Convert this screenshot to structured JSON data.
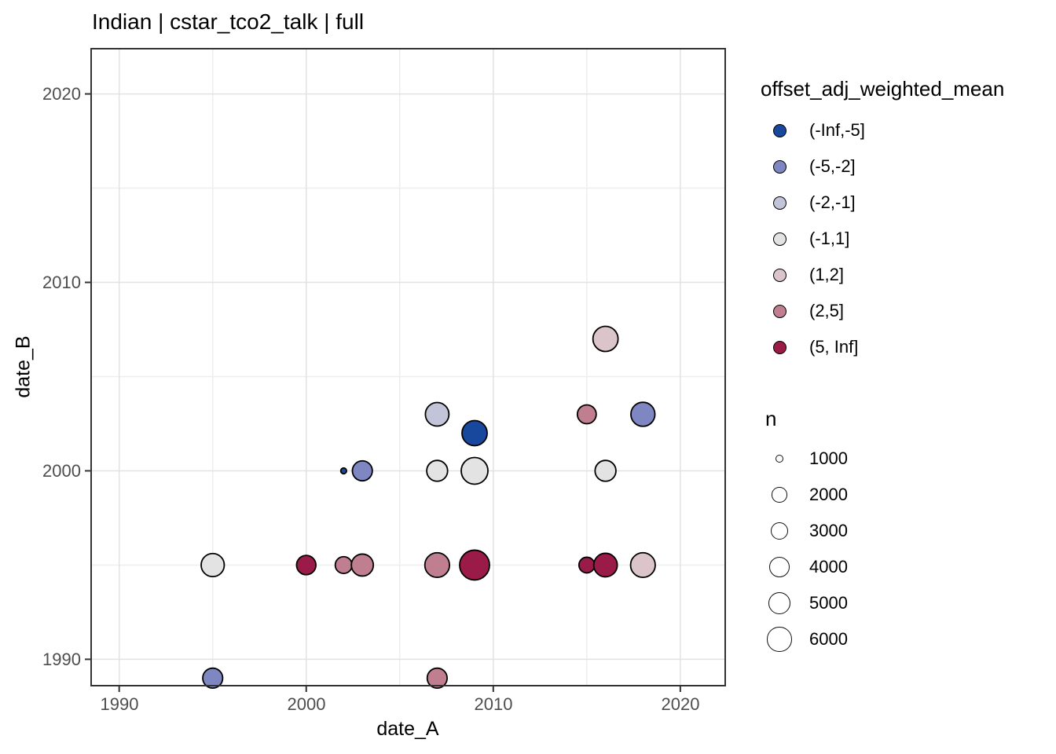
{
  "title": "Indian | cstar_tco2_talk | full",
  "x_axis": {
    "label": "date_A",
    "ticks": [
      "1990",
      "2000",
      "2010",
      "2020"
    ]
  },
  "y_axis": {
    "label": "date_B",
    "ticks": [
      "2020",
      "2010",
      "2000",
      "1990"
    ]
  },
  "legend_color": {
    "title": "offset_adj_weighted_mean",
    "items": [
      {
        "label": "(-Inf,-5]",
        "color": "#17489d"
      },
      {
        "label": "(-5,-2]",
        "color": "#7e87c1"
      },
      {
        "label": "(-2,-1]",
        "color": "#c2c5d9"
      },
      {
        "label": "(-1,1]",
        "color": "#e3e3e3"
      },
      {
        "label": "(1,2]",
        "color": "#dcc4cb"
      },
      {
        "label": "(2,5]",
        "color": "#c07f90"
      },
      {
        "label": "(5, Inf]",
        "color": "#9a1b47"
      }
    ]
  },
  "legend_size": {
    "title": "n",
    "items": [
      {
        "label": "1000",
        "r": 5.3
      },
      {
        "label": "2000",
        "r": 9.7
      },
      {
        "label": "3000",
        "r": 11.3
      },
      {
        "label": "4000",
        "r": 13.0
      },
      {
        "label": "5000",
        "r": 14.3
      },
      {
        "label": "6000",
        "r": 15.7
      }
    ]
  },
  "colors": {
    "panel_border": "#333333",
    "gridline_major": "#e2e2e2",
    "gridline_minor": "#eeeeee",
    "tick_mark": "#333333",
    "tick_label": "#4d4d4d",
    "point_stroke": "#000000"
  },
  "chart_data": {
    "type": "scatter",
    "title": "Indian | cstar_tco2_talk | full",
    "xlabel": "date_A",
    "ylabel": "date_B",
    "xlim": [
      1988.5,
      2022.4
    ],
    "ylim": [
      1988.6,
      2022.4
    ],
    "x_major_ticks": [
      1990,
      2000,
      2010,
      2020
    ],
    "y_major_ticks": [
      1990,
      2000,
      2010,
      2020
    ],
    "x_minor_ticks": [
      1995,
      2005,
      2015
    ],
    "y_minor_ticks": [
      1995,
      2005,
      2015
    ],
    "grid": true,
    "legend_position": "right",
    "color_variable": "offset_adj_weighted_mean",
    "size_variable": "n",
    "points": [
      {
        "date_A": 1995,
        "date_B": 1989,
        "bin": "(-5,-2]",
        "n": 3800,
        "r": 12.7
      },
      {
        "date_A": 2007,
        "date_B": 1989,
        "bin": "(2,5]",
        "n": 3800,
        "r": 12.7
      },
      {
        "date_A": 1995,
        "date_B": 1995,
        "bin": "(-1,1]",
        "n": 5200,
        "r": 14.7
      },
      {
        "date_A": 2000,
        "date_B": 1995,
        "bin": "(5, Inf]",
        "n": 3600,
        "r": 12.3
      },
      {
        "date_A": 2002,
        "date_B": 1995,
        "bin": "(2,5]",
        "n": 2600,
        "r": 10.7
      },
      {
        "date_A": 2003,
        "date_B": 1995,
        "bin": "(2,5]",
        "n": 4700,
        "r": 14.0
      },
      {
        "date_A": 2007,
        "date_B": 1995,
        "bin": "(2,5]",
        "n": 6000,
        "r": 15.7
      },
      {
        "date_A": 2009,
        "date_B": 1995,
        "bin": "(5, Inf]",
        "n": 8000,
        "r": 19.0
      },
      {
        "date_A": 2015,
        "date_B": 1995,
        "bin": "(5, Inf]",
        "n": 2300,
        "r": 10.0
      },
      {
        "date_A": 2016,
        "date_B": 1995,
        "bin": "(5, Inf]",
        "n": 5500,
        "r": 15.0
      },
      {
        "date_A": 2018,
        "date_B": 1995,
        "bin": "(1,2]",
        "n": 6000,
        "r": 15.7
      },
      {
        "date_A": 2002,
        "date_B": 2000,
        "bin": "(-Inf,-5]",
        "n": 400,
        "r": 3.7
      },
      {
        "date_A": 2003,
        "date_B": 2000,
        "bin": "(-5,-2]",
        "n": 3800,
        "r": 12.7
      },
      {
        "date_A": 2007,
        "date_B": 2000,
        "bin": "(-1,1]",
        "n": 4200,
        "r": 13.3
      },
      {
        "date_A": 2009,
        "date_B": 2000,
        "bin": "(-1,1]",
        "n": 7000,
        "r": 17.0
      },
      {
        "date_A": 2016,
        "date_B": 2000,
        "bin": "(-1,1]",
        "n": 4200,
        "r": 13.3
      },
      {
        "date_A": 2009,
        "date_B": 2002,
        "bin": "(-Inf,-5]",
        "n": 6200,
        "r": 16.0
      },
      {
        "date_A": 2007,
        "date_B": 2003,
        "bin": "(-2,-1]",
        "n": 5500,
        "r": 15.0
      },
      {
        "date_A": 2015,
        "date_B": 2003,
        "bin": "(2,5]",
        "n": 3400,
        "r": 12.0
      },
      {
        "date_A": 2018,
        "date_B": 2003,
        "bin": "(-5,-2]",
        "n": 5700,
        "r": 15.3
      },
      {
        "date_A": 2016,
        "date_B": 2007,
        "bin": "(1,2]",
        "n": 6200,
        "r": 16.0
      }
    ]
  }
}
